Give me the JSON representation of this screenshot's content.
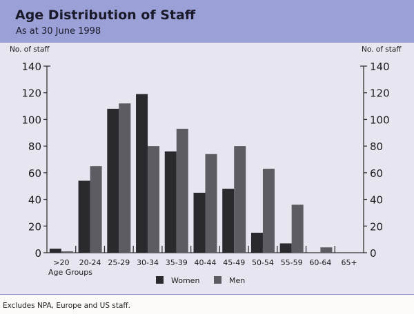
{
  "chart_data": {
    "type": "bar",
    "title": "Age Distribution of Staff",
    "subtitle": "As at 30 June 1998",
    "ylabel_left": "No. of staff",
    "ylabel_right": "No. of staff",
    "xlabel": "Age Groups",
    "ylim": [
      0,
      140
    ],
    "yticks": [
      0,
      20,
      40,
      60,
      80,
      100,
      120,
      140
    ],
    "categories": [
      ">20",
      "20-24",
      "25-29",
      "30-34",
      "35-39",
      "40-44",
      "45-49",
      "50-54",
      "55-59",
      "60-64",
      "65+"
    ],
    "series": [
      {
        "name": "Women",
        "color": "#2a2a2e",
        "values": [
          3,
          54,
          108,
          119,
          76,
          45,
          48,
          15,
          7,
          0,
          0
        ]
      },
      {
        "name": "Men",
        "color": "#5c5c62",
        "values": [
          1,
          65,
          112,
          80,
          93,
          74,
          80,
          63,
          36,
          4,
          0
        ]
      }
    ],
    "legend": "bottom",
    "grid": false
  },
  "footer": "Excludes NPA, Europe and US staff."
}
